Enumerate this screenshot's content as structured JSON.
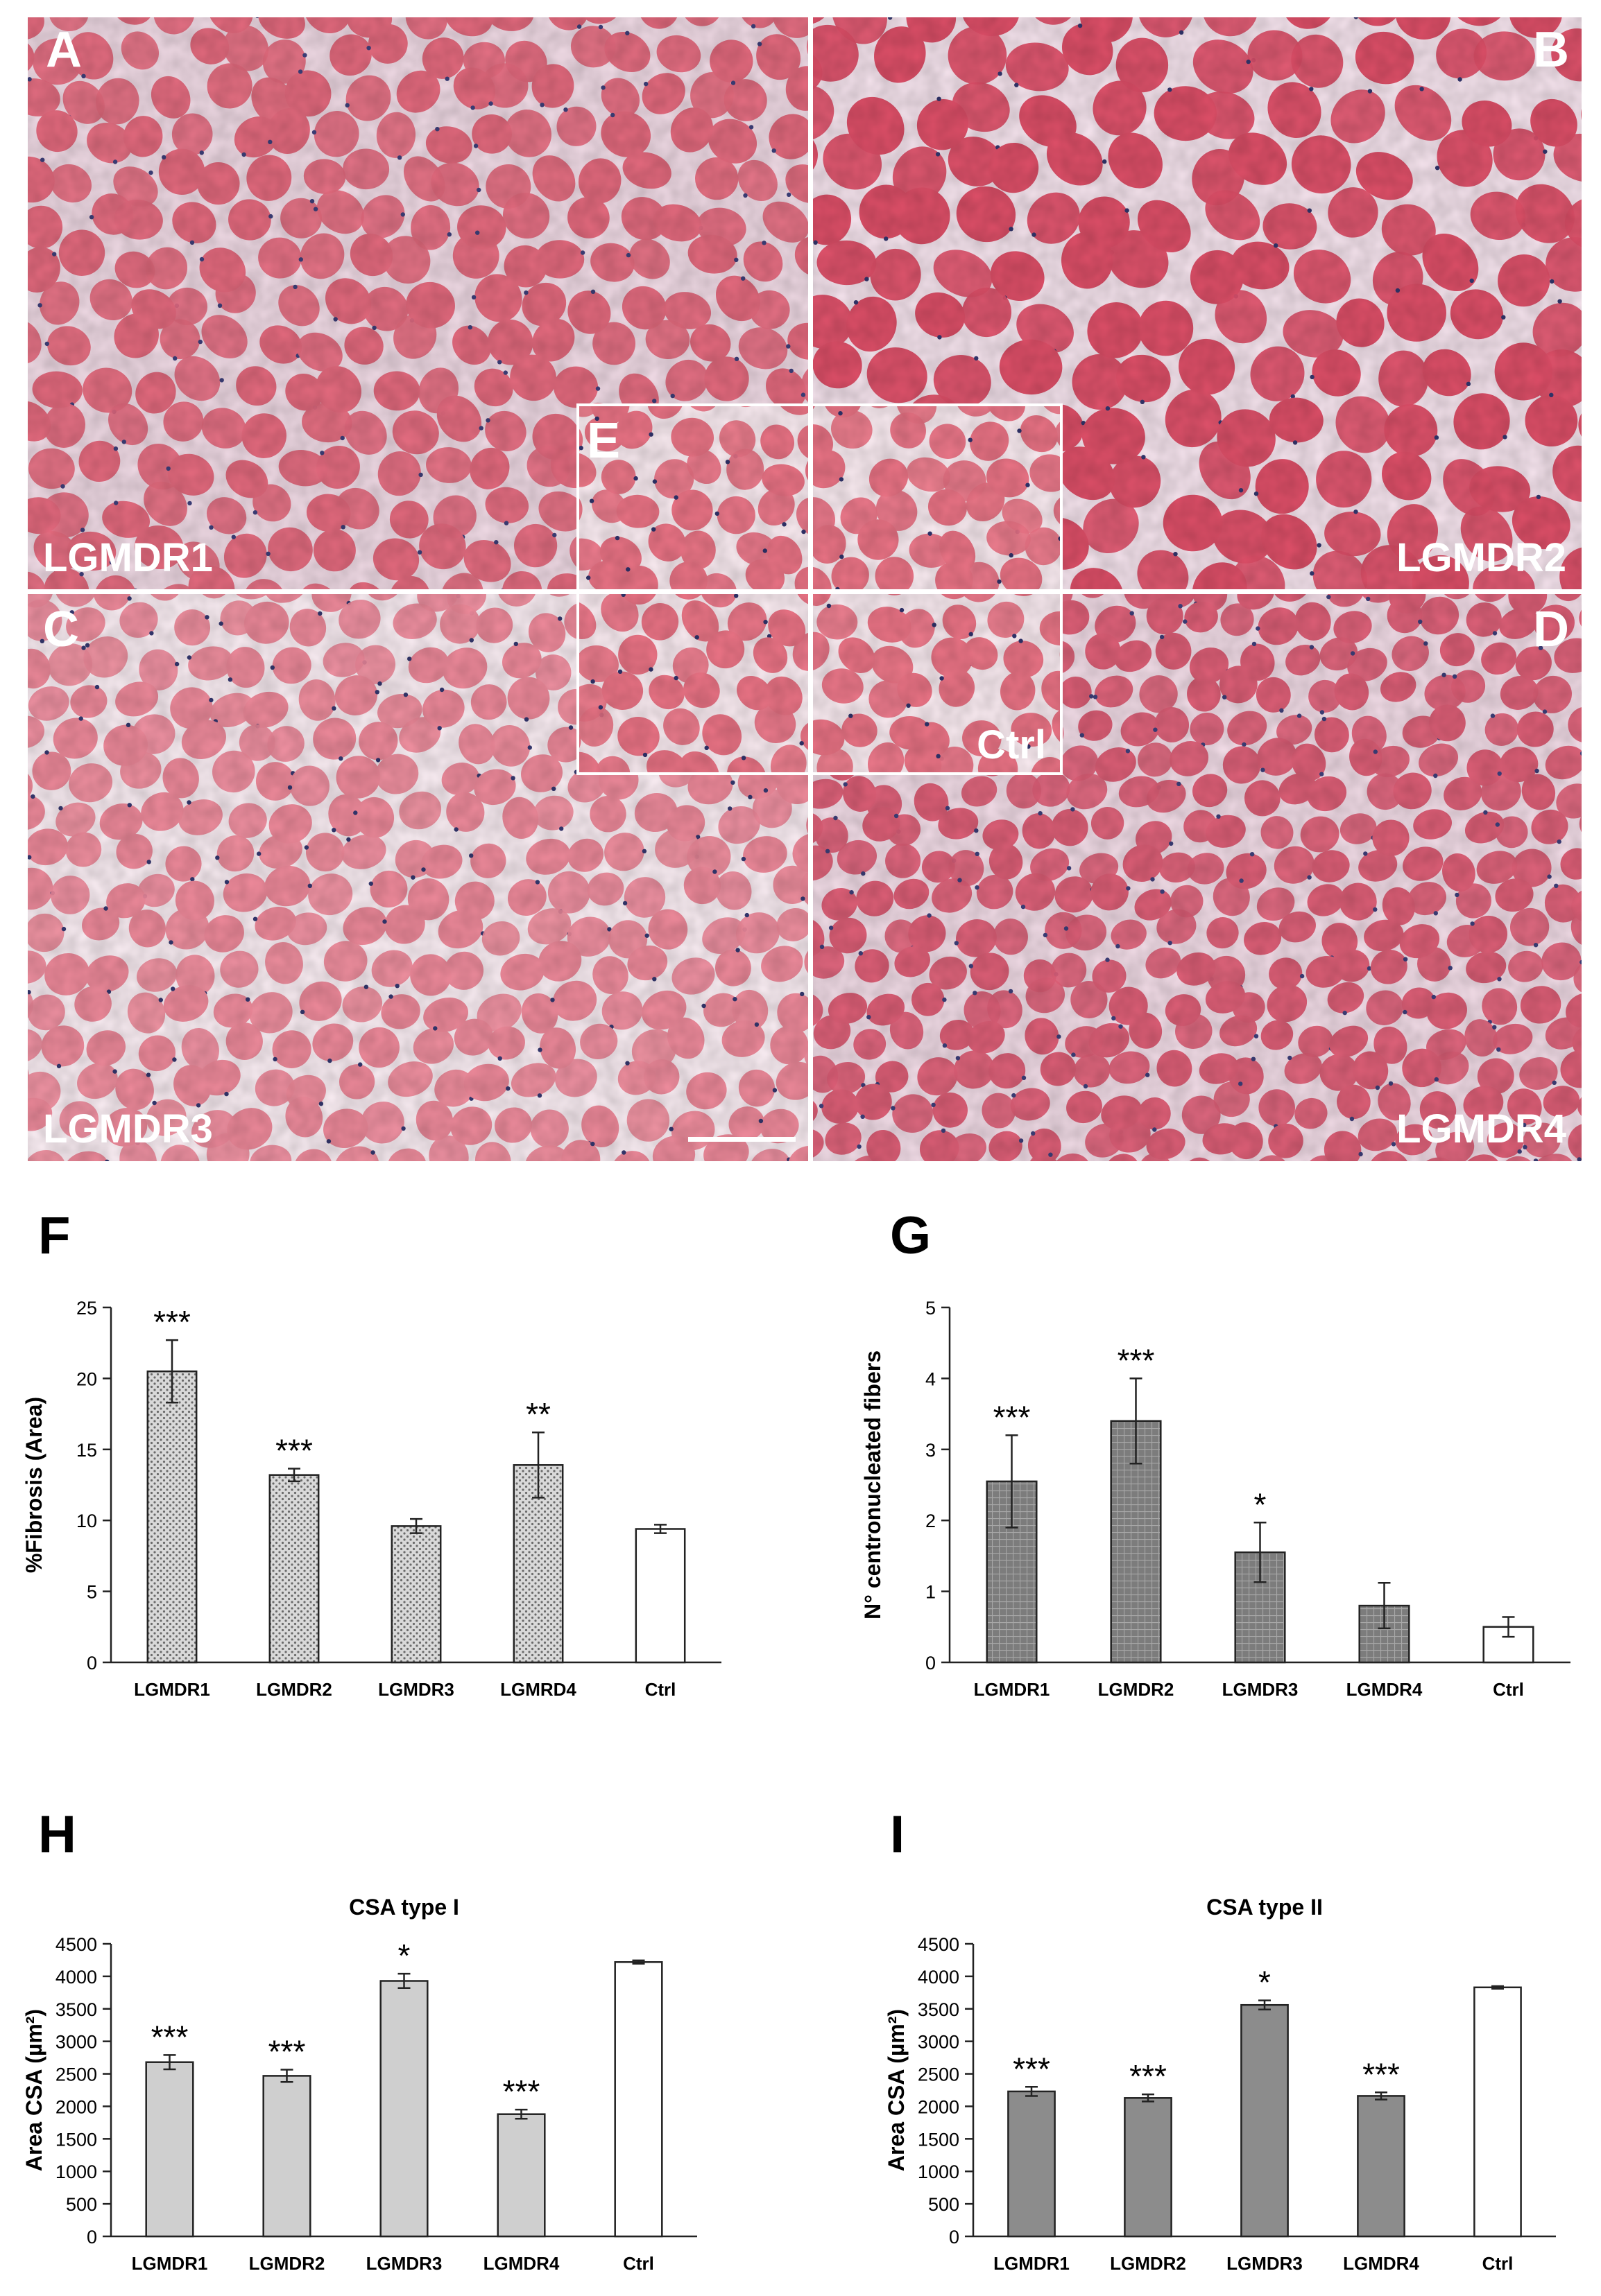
{
  "micrographs": [
    {
      "letter": "A",
      "label": "LGMDR1",
      "base": "#e08f9b",
      "fiber": "#e46a7e",
      "gap": "#f1dbe6",
      "nuclei": "#3d3f7a"
    },
    {
      "letter": "B",
      "label": "LGMDR2",
      "base": "#e25c74",
      "fiber": "#de4f68",
      "gap": "#f6e4ee",
      "nuclei": "#33366e"
    },
    {
      "letter": "C",
      "label": "LGMDR3",
      "base": "#f09aa8",
      "fiber": "#ef8a9b",
      "gap": "#fbeef4",
      "nuclei": "#34376f"
    },
    {
      "letter": "D",
      "label": "LGMDR4",
      "base": "#e9a2b1",
      "fiber": "#de5f77",
      "gap": "#f3dde8",
      "nuclei": "#3d3f7a"
    },
    {
      "letter": "E",
      "label": "Ctrl",
      "base": "#ee9aa6",
      "fiber": "#ec7486",
      "gap": "#fbecf2",
      "nuclei": "#30336c"
    }
  ],
  "chart_data": [
    {
      "panel": "F",
      "type": "bar",
      "title": "",
      "ylabel": "%Fibrosis (Area)",
      "ylim": [
        0,
        25
      ],
      "yticks": [
        0,
        5,
        10,
        15,
        20,
        25
      ],
      "categories": [
        "LGMDR1",
        "LGMDR2",
        "LGMDR3",
        "LGMRD4",
        "Ctrl"
      ],
      "values": [
        20.5,
        13.2,
        9.6,
        13.9,
        9.4
      ],
      "errors": [
        2.2,
        0.45,
        0.5,
        2.3,
        0.3
      ],
      "significance": [
        "***",
        "***",
        "",
        "**",
        ""
      ],
      "bar_style": [
        "hatch-dots",
        "hatch-dots",
        "hatch-dots",
        "hatch-dots",
        "white"
      ],
      "colors": {
        "fill": "#d6d6d6",
        "ctrl": "#ffffff",
        "edge": "#222222"
      }
    },
    {
      "panel": "G",
      "type": "bar",
      "title": "",
      "ylabel": "N° centronucleated fibers",
      "ylim": [
        0,
        5
      ],
      "yticks": [
        0,
        1,
        2,
        3,
        4,
        5
      ],
      "categories": [
        "LGMDR1",
        "LGMDR2",
        "LGMDR3",
        "LGMDR4",
        "Ctrl"
      ],
      "values": [
        2.55,
        3.4,
        1.55,
        0.8,
        0.5
      ],
      "errors": [
        0.65,
        0.6,
        0.42,
        0.32,
        0.14
      ],
      "significance": [
        "***",
        "***",
        "*",
        "",
        ""
      ],
      "bar_style": [
        "hatch-grid",
        "hatch-grid",
        "hatch-grid",
        "hatch-grid",
        "white"
      ],
      "colors": {
        "fill": "#7a7a7a",
        "ctrl": "#ffffff",
        "edge": "#222222"
      }
    },
    {
      "panel": "H",
      "type": "bar",
      "title": "CSA type I",
      "ylabel": "Area CSA (µm²)",
      "ylim": [
        0,
        4500
      ],
      "yticks": [
        0,
        500,
        1000,
        1500,
        2000,
        2500,
        3000,
        3500,
        4000,
        4500
      ],
      "categories": [
        "LGMDR1",
        "LGMDR2",
        "LGMDR3",
        "LGMDR4",
        "Ctrl"
      ],
      "values": [
        2680,
        2470,
        3930,
        1880,
        4220
      ],
      "errors": [
        110,
        95,
        110,
        70,
        25
      ],
      "significance": [
        "***",
        "***",
        "*",
        "***",
        ""
      ],
      "bar_style": [
        "solid",
        "solid",
        "solid",
        "solid",
        "white"
      ],
      "colors": {
        "fill": "#cfcfcf",
        "ctrl": "#ffffff",
        "edge": "#222222"
      }
    },
    {
      "panel": "I",
      "type": "bar",
      "title": "CSA type II",
      "ylabel": "Area CSA (µm²)",
      "ylim": [
        0,
        4500
      ],
      "yticks": [
        0,
        500,
        1000,
        1500,
        2000,
        2500,
        3000,
        3500,
        4000,
        4500
      ],
      "categories": [
        "LGMDR1",
        "LGMDR2",
        "LGMDR3",
        "LGMDR4",
        "Ctrl"
      ],
      "values": [
        2230,
        2130,
        3560,
        2160,
        3830
      ],
      "errors": [
        70,
        55,
        70,
        55,
        20
      ],
      "significance": [
        "***",
        "***",
        "*",
        "***",
        ""
      ],
      "bar_style": [
        "solid",
        "solid",
        "solid",
        "solid",
        "white"
      ],
      "colors": {
        "fill": "#8c8c8c",
        "ctrl": "#ffffff",
        "edge": "#222222"
      }
    }
  ]
}
